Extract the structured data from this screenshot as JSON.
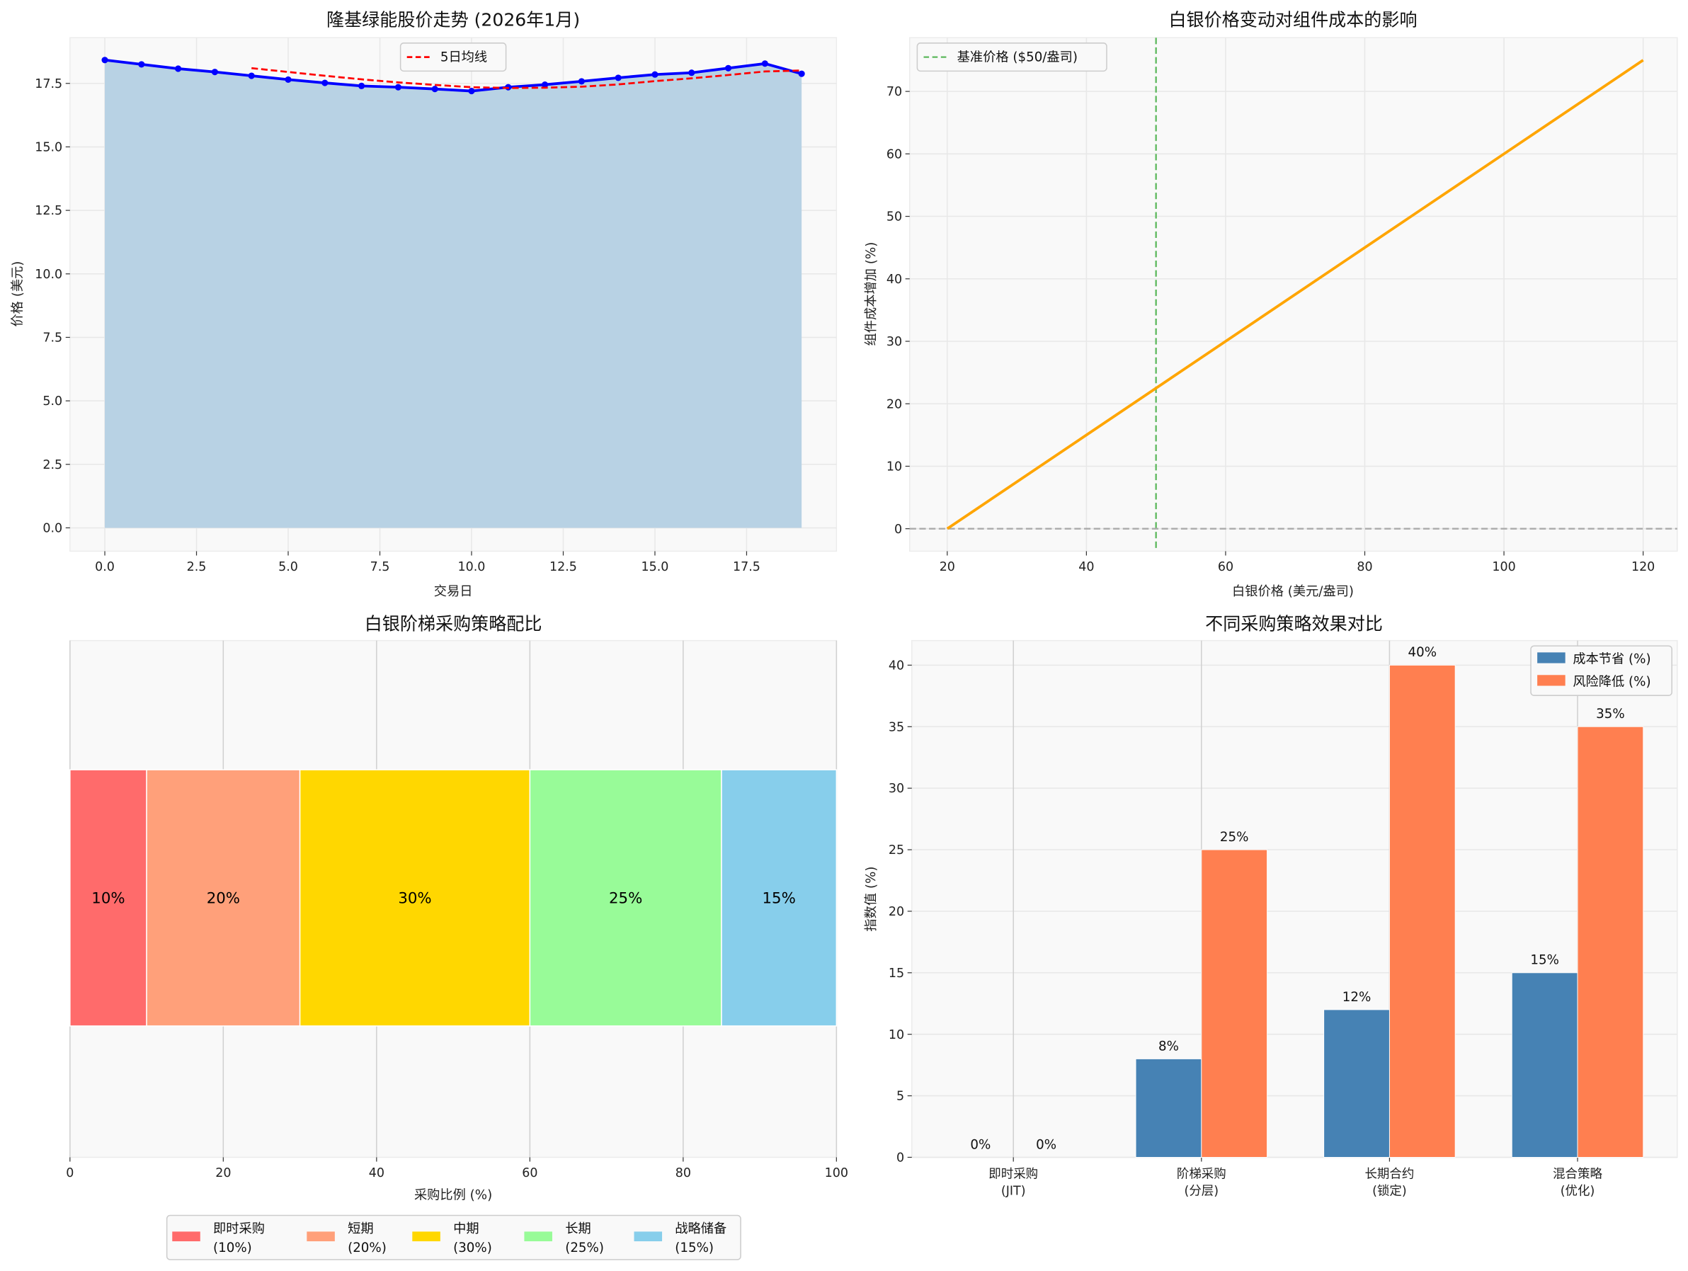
{
  "chart_data": [
    {
      "type": "area",
      "title": "隆基绿能股价走势 (2026年1月)",
      "xlabel": "交易日",
      "ylabel": "价格 (美元)",
      "xlim": [
        -0.95,
        19.95
      ],
      "ylim": [
        -0.92,
        19.3
      ],
      "xticks": [
        0,
        2.5,
        5,
        7.5,
        10,
        12.5,
        15,
        17.5
      ],
      "xtick_labels": [
        "0.0",
        "2.5",
        "5.0",
        "7.5",
        "10.0",
        "12.5",
        "15.0",
        "17.5"
      ],
      "yticks": [
        0,
        2.5,
        5,
        7.5,
        10,
        12.5,
        15,
        17.5
      ],
      "ytick_labels": [
        "0.0",
        "2.5",
        "5.0",
        "7.5",
        "10.0",
        "12.5",
        "15.0",
        "17.5"
      ],
      "grid": true,
      "legend": "top-center",
      "x": [
        0,
        1,
        2,
        3,
        4,
        5,
        6,
        7,
        8,
        9,
        10,
        11,
        12,
        13,
        14,
        15,
        16,
        17,
        18,
        19
      ],
      "series": [
        {
          "values": [
            18.42,
            18.25,
            18.08,
            17.95,
            17.8,
            17.65,
            17.52,
            17.4,
            17.35,
            17.28,
            17.2,
            17.35,
            17.45,
            17.58,
            17.72,
            17.85,
            17.92,
            18.1,
            18.28,
            17.88
          ],
          "color": "#0000ff",
          "style": "line-markers-filled"
        },
        {
          "name": "5日均线",
          "x": [
            4,
            5,
            6,
            7,
            8,
            9,
            10,
            11,
            12,
            13,
            14,
            15,
            16,
            17,
            18,
            19
          ],
          "values": [
            18.1,
            17.95,
            17.8,
            17.66,
            17.54,
            17.44,
            17.35,
            17.32,
            17.33,
            17.37,
            17.46,
            17.59,
            17.7,
            17.83,
            17.97,
            18.01
          ],
          "color": "#ff0000",
          "style": "dashed"
        }
      ],
      "fill_color": "#b8d2e4"
    },
    {
      "type": "line",
      "title": "白银价格变动对组件成本的影响",
      "xlabel": "白银价格 (美元/盎司)",
      "ylabel": "组件成本增加 (%)",
      "xlim": [
        14.6,
        124.9
      ],
      "ylim": [
        -3.6,
        78.6
      ],
      "xticks": [
        20,
        40,
        60,
        80,
        100,
        120
      ],
      "yticks": [
        0,
        10,
        20,
        30,
        40,
        50,
        60,
        70
      ],
      "grid": true,
      "legend": "top-left",
      "series": [
        {
          "x": [
            20,
            120
          ],
          "values": [
            0,
            75
          ],
          "color": "#ffa500"
        }
      ],
      "reference_lines": [
        {
          "name": "基准价格 ($50/盎司)",
          "orientation": "vertical",
          "value": 50,
          "color": "#5cb85c",
          "style": "dashed"
        },
        {
          "orientation": "horizontal",
          "value": 0,
          "color": "#aaaaaa",
          "style": "dashed"
        }
      ]
    },
    {
      "type": "bar",
      "orientation": "horizontal-stacked",
      "title": "白银阶梯采购策略配比",
      "xlabel": "采购比例 (%)",
      "xlim": [
        0,
        100
      ],
      "xticks": [
        0,
        20,
        40,
        60,
        80,
        100
      ],
      "grid": true,
      "legend": "bottom-center",
      "segments": [
        {
          "name": "即时采购",
          "legend_sub": "(10%)",
          "value": 10,
          "label": "10%",
          "color": "#ff6b6b"
        },
        {
          "name": "短期",
          "legend_sub": "(20%)",
          "value": 20,
          "label": "20%",
          "color": "#ffa07a"
        },
        {
          "name": "中期",
          "legend_sub": "(30%)",
          "value": 30,
          "label": "30%",
          "color": "#ffd700"
        },
        {
          "name": "长期",
          "legend_sub": "(25%)",
          "value": 25,
          "label": "25%",
          "color": "#98fb98"
        },
        {
          "name": "战略储备",
          "legend_sub": "(15%)",
          "value": 15,
          "label": "15%",
          "color": "#87ceeb"
        }
      ]
    },
    {
      "type": "bar",
      "title": "不同采购策略效果对比",
      "ylabel": "指数值 (%)",
      "ylim": [
        0,
        42
      ],
      "yticks": [
        0,
        5,
        10,
        15,
        20,
        25,
        30,
        35,
        40
      ],
      "grid": true,
      "legend": "top-right",
      "categories": [
        [
          "即时采购",
          "(JIT)"
        ],
        [
          "阶梯采购",
          "(分层)"
        ],
        [
          "长期合约",
          "(锁定)"
        ],
        [
          "混合策略",
          "(优化)"
        ]
      ],
      "series": [
        {
          "name": "成本节省 (%)",
          "values": [
            0,
            8,
            12,
            15
          ],
          "labels": [
            "0%",
            "8%",
            "12%",
            "15%"
          ],
          "color": "#4682b4"
        },
        {
          "name": "风险降低 (%)",
          "values": [
            0,
            25,
            40,
            35
          ],
          "labels": [
            "0%",
            "25%",
            "40%",
            "35%"
          ],
          "color": "#ff7f50"
        }
      ]
    }
  ]
}
